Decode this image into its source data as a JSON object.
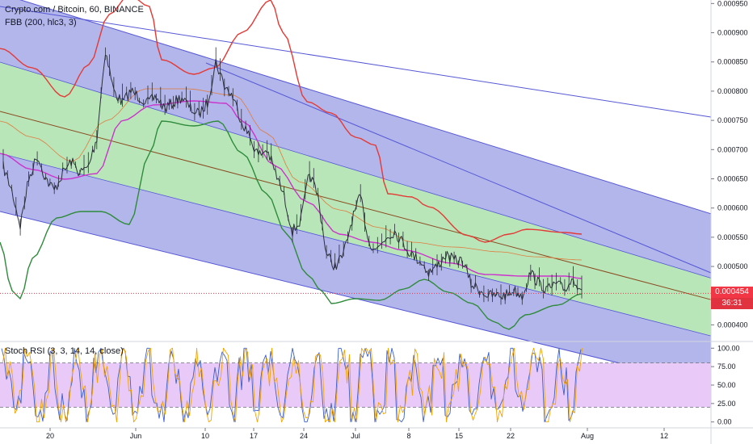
{
  "header": {
    "title": "Crypto.com / Bitcoin, 60, BINANCE",
    "fbb": "FBB (200, hlc3, 3)",
    "stoch": "Stoch RSI (3, 3, 14, 14, close)"
  },
  "price_badge": {
    "price": "0.000454",
    "countdown": "36:31"
  },
  "colors": {
    "channel_blue": "#5557d6",
    "fill_blue": "#b3b6ea",
    "fill_green": "#b9e6b9",
    "fib_red": "#e53935",
    "fib_green": "#2e8b3a",
    "fib_mid": "#cc33cc",
    "fib_brown": "#e07a3c",
    "price": "#2a2e39",
    "stoch_k": "#3a5fcd",
    "stoch_d": "#f4a400",
    "stoch_band": "#e9c9f7",
    "current_price": "#f23645"
  },
  "chart_data": [
    {
      "type": "line",
      "title": "Crypto.com / Bitcoin, 60, BINANCE",
      "indicator": "FBB (200, hlc3, 3)",
      "x_ticks": [
        "20",
        "Jun",
        "10",
        "17",
        "24",
        "Jul",
        "8",
        "15",
        "22",
        "Aug",
        "12"
      ],
      "y_ticks": [
        "0.000400",
        "0.000450",
        "0.000500",
        "0.000550",
        "0.000600",
        "0.000650",
        "0.000700",
        "0.000750",
        "0.000800",
        "0.000850",
        "0.000900",
        "0.000950"
      ],
      "ylim": [
        0.000373,
        0.000956
      ],
      "current_price": 0.000454,
      "series": [
        {
          "values": [
            0.00067,
            0.00063,
            0.00057,
            0.00065,
            0.00069,
            0.00065,
            0.00063,
            0.00066,
            0.00068,
            0.00066,
            0.00067,
            0.00072,
            0.00087,
            0.0008,
            0.00078,
            0.0008,
            0.00079,
            0.00078,
            0.00079,
            0.00077,
            0.00078,
            0.00079,
            0.00077,
            0.00076,
            0.00078,
            0.00085,
            0.00081,
            0.00079,
            0.00075,
            0.00072,
            0.00069,
            0.0007,
            0.00066,
            0.00062,
            0.00056,
            0.00058,
            0.00066,
            0.00062,
            0.00052,
            0.0005,
            0.00052,
            0.00058,
            0.00062,
            0.00054,
            0.00053,
            0.00055,
            0.00056,
            0.00054,
            0.00052,
            0.00051,
            0.00049,
            0.0005,
            0.00052,
            0.00051,
            0.00051,
            0.00047,
            0.00046,
            0.00045,
            0.00045,
            0.00045,
            0.00046,
            0.00045,
            0.00049,
            0.00047,
            0.00046,
            0.00047,
            0.00046,
            0.00048,
            0.00046
          ]
        }
      ]
    },
    {
      "type": "line",
      "title": "Stoch RSI (3, 3, 14, 14, close)",
      "x_ticks": [
        "20",
        "Jun",
        "10",
        "17",
        "24",
        "Jul",
        "8",
        "15",
        "22",
        "Aug",
        "12"
      ],
      "y_ticks": [
        "0.00",
        "25.00",
        "50.00",
        "75.00",
        "100.00"
      ],
      "ylim": [
        -8,
        108
      ],
      "bands": [
        20,
        80
      ]
    }
  ]
}
